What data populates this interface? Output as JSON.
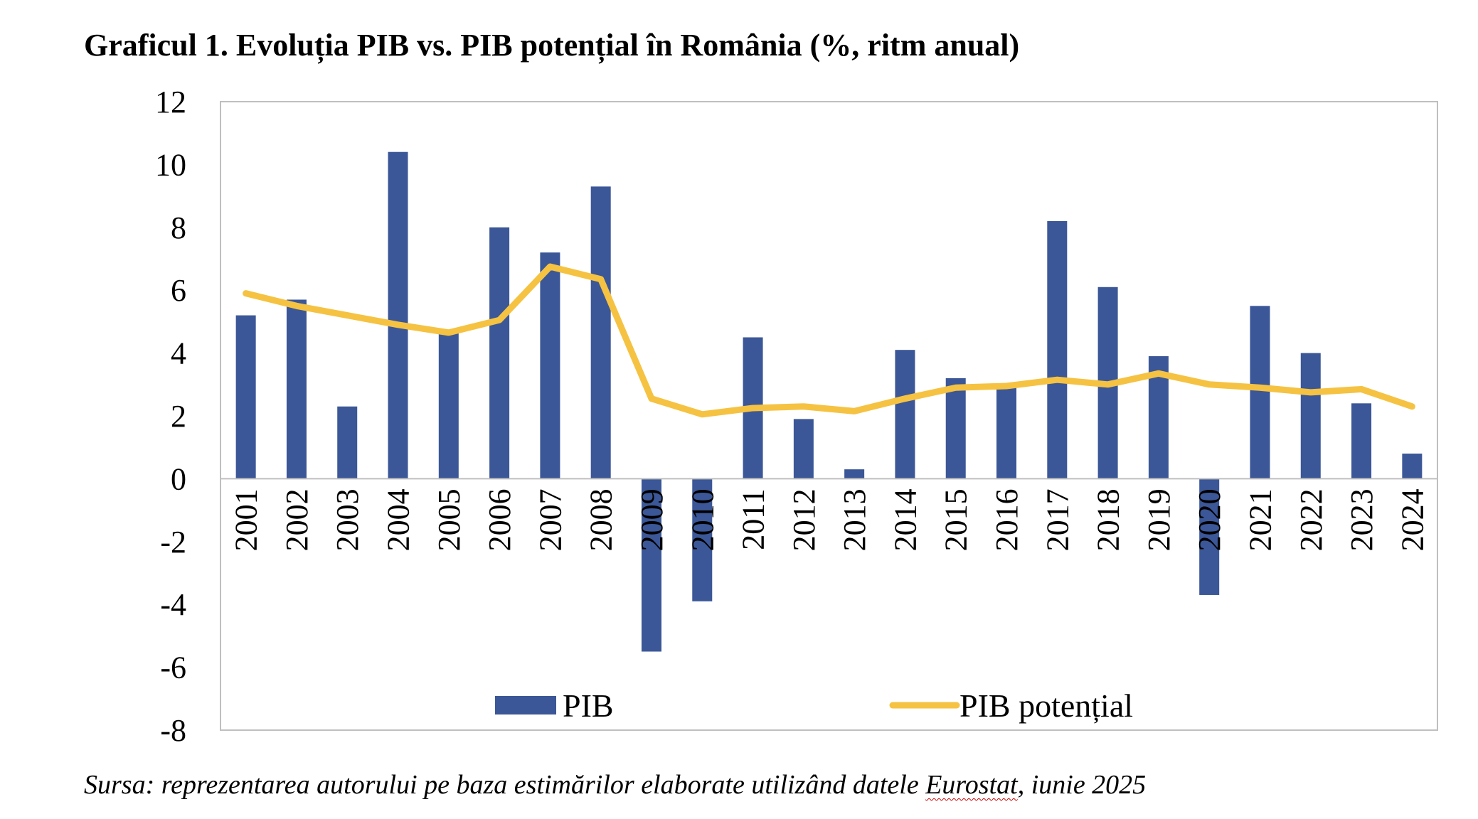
{
  "chart_data": {
    "type": "bar",
    "title": "Graficul 1. Evoluția PIB vs. PIB potențial în România (%, ritm anual)",
    "source": {
      "before": "Sursa: reprezentarea autorului pe baza estimărilor elaborate utilizând datele ",
      "underlined": "Eurostat",
      "after": ", iunie 2025"
    },
    "categories": [
      "2001",
      "2002",
      "2003",
      "2004",
      "2005",
      "2006",
      "2007",
      "2008",
      "2009",
      "2010",
      "2011",
      "2012",
      "2013",
      "2014",
      "2015",
      "2016",
      "2017",
      "2018",
      "2019",
      "2020",
      "2021",
      "2022",
      "2023",
      "2024"
    ],
    "series": [
      {
        "name": "PIB",
        "type": "bar",
        "color": "#3b5797",
        "values": [
          5.2,
          5.7,
          2.3,
          10.4,
          4.7,
          8.0,
          7.2,
          9.3,
          -5.5,
          -3.9,
          4.5,
          1.9,
          0.3,
          4.1,
          3.2,
          2.9,
          8.2,
          6.1,
          3.9,
          -3.7,
          5.5,
          4.0,
          2.4,
          0.8
        ]
      },
      {
        "name": "PIB potențial",
        "type": "line",
        "color": "#f5c242",
        "values": [
          5.9,
          5.5,
          5.2,
          4.9,
          4.65,
          5.05,
          6.75,
          6.35,
          2.55,
          2.05,
          2.25,
          2.3,
          2.15,
          2.55,
          2.9,
          2.95,
          3.15,
          3.0,
          3.35,
          3.0,
          2.9,
          2.75,
          2.85,
          2.3
        ]
      }
    ],
    "ylim": [
      -8,
      12
    ],
    "yticks": [
      "12",
      "10",
      "8",
      "6",
      "4",
      "2",
      "0",
      "-2",
      "-4",
      "-6",
      "-8"
    ],
    "grid": false,
    "legend": "bottom-center"
  }
}
